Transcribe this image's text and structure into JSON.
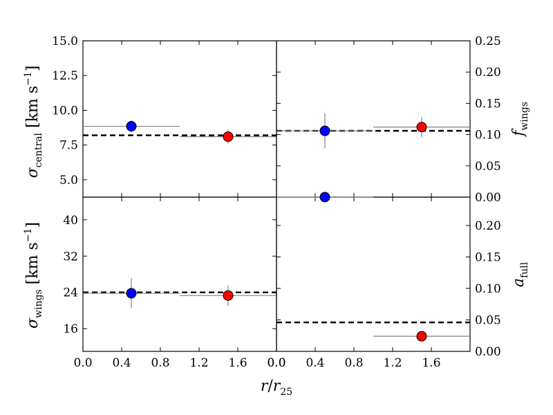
{
  "chart_data": [
    {
      "type": "scatter",
      "panel": "top-left",
      "ylabel": "σ_central [km s^-1]",
      "xlim": [
        0.0,
        2.0
      ],
      "ylim": [
        3.75,
        15.0
      ],
      "xticks": [
        "0.0",
        "0.4",
        "0.8",
        "1.2",
        "1.6",
        "0.0"
      ],
      "yticks": [
        "5.0",
        "7.5",
        "10.0",
        "12.5",
        "15.0"
      ],
      "reference_line": 8.2,
      "points": [
        {
          "x": 0.5,
          "y": 8.85,
          "xerr": [
            0.0,
            1.0
          ],
          "yerr": 0.45,
          "color": "#0000ff"
        },
        {
          "x": 1.5,
          "y": 8.1,
          "xerr": [
            1.0,
            2.0
          ],
          "yerr": 0.5,
          "color": "#ff0000"
        }
      ]
    },
    {
      "type": "scatter",
      "panel": "top-right",
      "ylabel": "f_wings",
      "xlim": [
        0.0,
        2.0
      ],
      "ylim": [
        0.0,
        0.25
      ],
      "yticks": [
        "0.00",
        "0.05",
        "0.10",
        "0.15",
        "0.20",
        "0.25"
      ],
      "reference_line": 0.106,
      "points": [
        {
          "x": 0.5,
          "y": 0.106,
          "xerr": [
            0.0,
            1.0
          ],
          "yerr": 0.028,
          "color": "#0000ff"
        },
        {
          "x": 1.5,
          "y": 0.112,
          "xerr": [
            1.0,
            2.0
          ],
          "yerr": 0.016,
          "color": "#ff0000"
        }
      ]
    },
    {
      "type": "scatter",
      "panel": "bottom-left",
      "ylabel": "σ_wings [km s^-1]",
      "xlabel": "r/r_25",
      "xlim": [
        0.0,
        2.0
      ],
      "ylim": [
        11.0,
        45.0
      ],
      "xticks": [
        "0.0",
        "0.4",
        "0.8",
        "1.2",
        "1.6",
        "0.0"
      ],
      "yticks": [
        "16",
        "24",
        "32",
        "40"
      ],
      "reference_line": 24.0,
      "points": [
        {
          "x": 0.5,
          "y": 23.8,
          "xerr": [
            0.0,
            1.0
          ],
          "yerr": 3.3,
          "color": "#0000ff"
        },
        {
          "x": 1.5,
          "y": 23.3,
          "xerr": [
            1.0,
            2.0
          ],
          "yerr": 2.2,
          "color": "#ff0000"
        }
      ]
    },
    {
      "type": "scatter",
      "panel": "bottom-right",
      "ylabel": "a_full",
      "xlim": [
        0.0,
        2.0
      ],
      "ylim": [
        0.0,
        0.245
      ],
      "xticks": [
        "0.0",
        "0.4",
        "0.8",
        "1.2",
        "1.6"
      ],
      "yticks": [
        "0.00",
        "0.05",
        "0.10",
        "0.15",
        "0.20"
      ],
      "reference_line": 0.046,
      "points": [
        {
          "x": 0.5,
          "y": 0.245,
          "xerr": [
            0.0,
            1.0
          ],
          "yerr": 0.0,
          "color": "#0000ff"
        },
        {
          "x": 1.5,
          "y": 0.024,
          "xerr": [
            1.0,
            2.0
          ],
          "yerr": 0.0,
          "color": "#ff0000"
        }
      ]
    }
  ]
}
